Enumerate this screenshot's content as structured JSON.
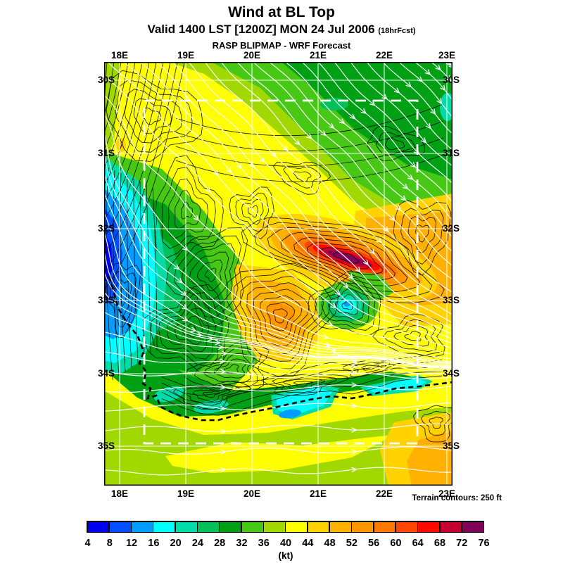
{
  "header": {
    "title": "Wind at BL Top",
    "valid_line": "Valid 1400 LST [1200Z] MON 24 Jul 2006",
    "fcst_suffix": "(18hrFcst)",
    "model_line": "RASP BLIPMAP - WRF Forecast"
  },
  "map": {
    "lon_labels": [
      "18E",
      "19E",
      "20E",
      "21E",
      "22E",
      "23E"
    ],
    "lat_labels": [
      "30S",
      "31S",
      "32S",
      "33S",
      "34S",
      "35S"
    ],
    "terrain_note": "Terrain contours: 250 ft"
  },
  "colorbar": {
    "tick_labels": [
      "4",
      "8",
      "12",
      "16",
      "20",
      "24",
      "28",
      "32",
      "36",
      "40",
      "44",
      "48",
      "52",
      "56",
      "60",
      "64",
      "68",
      "72",
      "76"
    ],
    "unit_label": "(kt)",
    "colors": [
      "#0000F0",
      "#004EFF",
      "#009CFF",
      "#00FFFF",
      "#00DCA8",
      "#00C05A",
      "#00A014",
      "#46C814",
      "#A0D800",
      "#FFFF00",
      "#FFD200",
      "#FFB000",
      "#FF9600",
      "#FF7800",
      "#FF4600",
      "#FF0A00",
      "#C80032",
      "#82005A"
    ]
  },
  "chart_data": {
    "type": "heatmap",
    "title": "Wind at BL Top",
    "subtitle": "Valid 1400 LST [1200Z] MON 24 Jul 2006 (18hrFcst)",
    "source_line": "RASP BLIPMAP - WRF Forecast",
    "variable": "Boundary-layer top wind speed",
    "unit": "kt",
    "scale_values": [
      4,
      8,
      12,
      16,
      20,
      24,
      28,
      32,
      36,
      40,
      44,
      48,
      52,
      56,
      60,
      64,
      68,
      72,
      76
    ],
    "scale_colors": [
      "#0000F0",
      "#004EFF",
      "#009CFF",
      "#00FFFF",
      "#00DCA8",
      "#00C05A",
      "#00A014",
      "#46C814",
      "#A0D800",
      "#FFFF00",
      "#FFD200",
      "#FFB000",
      "#FF9600",
      "#FF7800",
      "#FF4600",
      "#FF0A00",
      "#C80032",
      "#82005A"
    ],
    "x_ticks": [
      "18E",
      "19E",
      "20E",
      "21E",
      "22E",
      "23E"
    ],
    "y_ticks": [
      "30S",
      "31S",
      "32S",
      "33S",
      "34S",
      "35S"
    ],
    "legend_position": "bottom",
    "grid": true,
    "annotations": [
      "Terrain contours: 250 ft"
    ],
    "features": [
      {
        "name": "jet streak max ~64-76 kt",
        "location": "32S 21E-22E"
      },
      {
        "name": "light wind pool ~4-16 kt",
        "location": "west coast 32S-33S 18E"
      },
      {
        "name": "calm eddy ~12-20 kt",
        "location": "33S 21.4E"
      },
      {
        "name": "coastal light band ~12-16 kt",
        "location": "34.5S 20E-22.5E"
      },
      {
        "name": "moderate NW flow ~28-40 kt",
        "location": "interior"
      }
    ]
  }
}
